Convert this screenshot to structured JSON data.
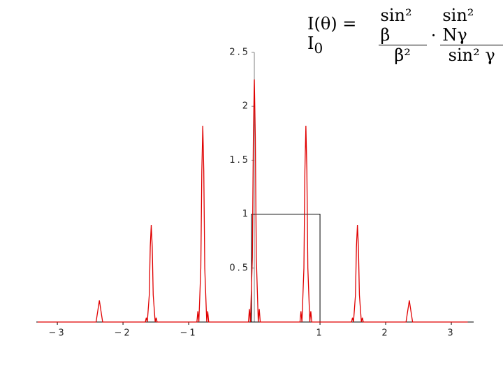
{
  "chart_data": {
    "type": "line",
    "formula": {
      "lhs": "I(θ) = I",
      "sub": "0",
      "frac1_num": "sin² β",
      "frac1_den": "β²",
      "dot": "·",
      "frac2_num": "sin² Nγ",
      "frac2_den": "sin² γ"
    },
    "x": [
      -3.3,
      -2.41,
      -2.385,
      -2.36,
      -2.335,
      -2.31,
      -1.66,
      -1.645,
      -1.63,
      -1.6,
      -1.585,
      -1.57,
      -1.555,
      -1.54,
      -1.51,
      -1.495,
      -1.48,
      -0.875,
      -0.86,
      -0.845,
      -0.815,
      -0.8,
      -0.785,
      -0.77,
      -0.755,
      -0.725,
      -0.71,
      -0.695,
      -0.09,
      -0.075,
      -0.06,
      -0.03,
      -0.015,
      0,
      0.015,
      0.03,
      0.06,
      0.075,
      0.09,
      0.695,
      0.71,
      0.725,
      0.755,
      0.77,
      0.785,
      0.8,
      0.815,
      0.845,
      0.86,
      0.875,
      1.48,
      1.495,
      1.51,
      1.54,
      1.555,
      1.57,
      1.585,
      1.6,
      1.63,
      1.645,
      1.66,
      2.31,
      2.335,
      2.36,
      2.385,
      2.41,
      3.25
    ],
    "series": [
      {
        "color": "#e00000",
        "values": [
          0,
          0,
          0.1,
          0.2,
          0.1,
          0,
          0,
          0.04,
          0,
          0.25,
          0.7,
          0.9,
          0.7,
          0.25,
          0,
          0.04,
          0,
          0,
          0.1,
          0,
          0.5,
          1.4,
          1.82,
          1.4,
          0.5,
          0,
          0.1,
          0,
          0,
          0.12,
          0,
          0.6,
          1.7,
          2.25,
          1.7,
          0.6,
          0,
          0.12,
          0,
          0,
          0.1,
          0,
          0.5,
          1.4,
          1.82,
          1.4,
          0.5,
          0,
          0.1,
          0,
          0,
          0.04,
          0,
          0.25,
          0.7,
          0.9,
          0.7,
          0.25,
          0,
          0.04,
          0,
          0,
          0.1,
          0.2,
          0.1,
          0,
          0
        ]
      }
    ],
    "box_x": [
      0,
      1
    ],
    "box_y": [
      0,
      1
    ],
    "xlim": [
      -3.32,
      3.34
    ],
    "ylim": [
      0,
      2.5
    ],
    "xticks": [
      {
        "value": -3,
        "label": "−3"
      },
      {
        "value": -2,
        "label": "−2"
      },
      {
        "value": -1,
        "label": "−1"
      },
      1,
      2,
      3
    ],
    "yticks": [
      0.5,
      1,
      1.5,
      2,
      2.5
    ]
  }
}
